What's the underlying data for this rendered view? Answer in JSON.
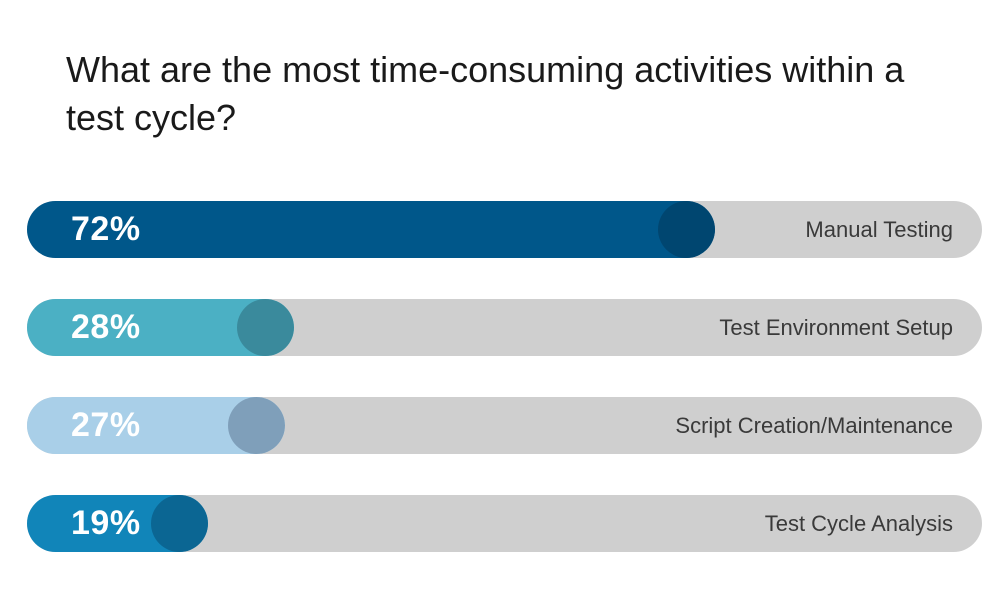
{
  "chart_data": {
    "type": "bar",
    "orientation": "horizontal",
    "title": "What are the most time-consuming activities within a test cycle?",
    "unit": "%",
    "xlim": [
      0,
      100
    ],
    "grid": false,
    "legend": "none",
    "categories": [
      "Manual Testing",
      "Test Environment Setup",
      "Script Creation/Maintenance",
      "Test Cycle Analysis"
    ],
    "values": [
      72,
      28,
      27,
      19
    ],
    "value_labels": [
      "72%",
      "28%",
      "27%",
      "19%"
    ],
    "colors": {
      "fills": [
        "#00578a",
        "#4bb0c4",
        "#a9cfe8",
        "#1185b9"
      ],
      "knobs": [
        "#004670",
        "#3a8a9c",
        "#7f9fba",
        "#0b6693"
      ],
      "track": "#cfcfcf",
      "value_text": "#ffffff",
      "label_text": "#3a3a3a"
    }
  }
}
